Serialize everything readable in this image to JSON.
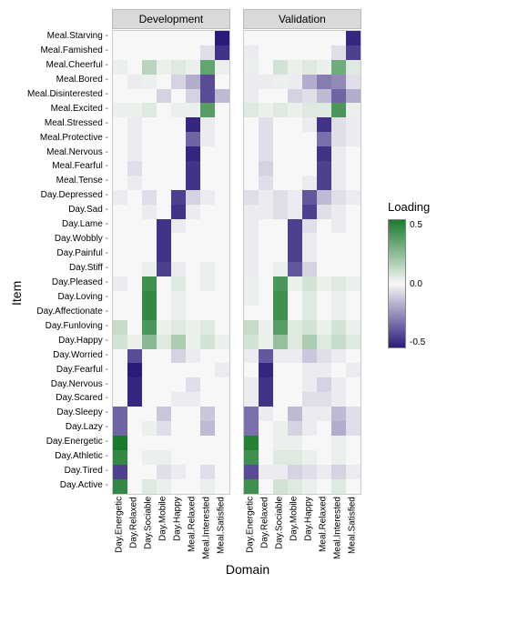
{
  "title_y": "Item",
  "title_x": "Domain",
  "legend_title": "Loading",
  "legend_ticks": [
    "0.5",
    "0.0",
    "-0.5"
  ],
  "color_scale": {
    "low": "#2c1a7a",
    "mid": "#f7f7f7",
    "high": "#1a7a2c",
    "domain": [
      -0.9,
      0,
      0.9
    ]
  },
  "y_items": [
    "Meal.Starving",
    "Meal.Famished",
    "Meal.Cheerful",
    "Meal.Bored",
    "Meal.Disinterested",
    "Meal.Excited",
    "Meal.Stressed",
    "Meal.Protective",
    "Meal.Nervous",
    "Meal.Fearful",
    "Meal.Tense",
    "Day.Depressed",
    "Day.Sad",
    "Day.Lame",
    "Day.Wobbly",
    "Day.Painful",
    "Day.Stiff",
    "Day.Pleased",
    "Day.Loving",
    "Day.Affectionate",
    "Day.Funloving",
    "Day.Happy",
    "Day.Worried",
    "Day.Fearful",
    "Day.Nervous",
    "Day.Scared",
    "Day.Sleepy",
    "Day.Lazy",
    "Day.Energetic",
    "Day.Athletic",
    "Day.Tired",
    "Day.Active"
  ],
  "x_domains": [
    "Day.Energetic",
    "Day.Relaxed",
    "Day.Sociable",
    "Day.Mobile",
    "Day.Happy",
    "Meal.Relaxed",
    "Meal.Interested",
    "Meal.Satisfied"
  ],
  "panels": [
    {
      "label": "Development",
      "data": [
        [
          0.0,
          0.0,
          0.0,
          0.0,
          0.0,
          0.0,
          0.0,
          -0.9
        ],
        [
          0.0,
          0.0,
          0.0,
          0.0,
          0.0,
          0.0,
          -0.1,
          -0.8
        ],
        [
          0.05,
          0.0,
          0.25,
          0.05,
          0.1,
          0.05,
          0.6,
          0.05
        ],
        [
          0.0,
          -0.05,
          0.05,
          0.0,
          -0.15,
          -0.3,
          -0.7,
          0.0
        ],
        [
          0.0,
          0.0,
          0.0,
          -0.15,
          0.0,
          -0.15,
          -0.7,
          -0.25
        ],
        [
          0.05,
          0.05,
          0.1,
          0.0,
          0.05,
          0.05,
          0.65,
          0.0
        ],
        [
          0.0,
          -0.05,
          0.0,
          0.0,
          0.0,
          -0.85,
          -0.05,
          0.0
        ],
        [
          0.0,
          -0.05,
          0.0,
          0.0,
          0.0,
          -0.6,
          -0.05,
          0.0
        ],
        [
          0.0,
          -0.05,
          0.0,
          0.0,
          0.0,
          -0.85,
          0.0,
          0.0
        ],
        [
          0.0,
          -0.1,
          0.0,
          0.0,
          0.0,
          -0.8,
          0.0,
          0.0
        ],
        [
          0.0,
          -0.05,
          0.0,
          0.0,
          0.0,
          -0.8,
          0.0,
          0.0
        ],
        [
          -0.05,
          0.0,
          -0.1,
          0.0,
          -0.75,
          -0.15,
          -0.05,
          0.0
        ],
        [
          0.0,
          0.0,
          -0.05,
          0.0,
          -0.8,
          -0.05,
          0.0,
          0.0
        ],
        [
          0.0,
          0.0,
          0.0,
          -0.8,
          -0.05,
          0.0,
          0.0,
          0.0
        ],
        [
          0.0,
          0.0,
          0.0,
          -0.8,
          0.0,
          0.0,
          0.0,
          0.0
        ],
        [
          0.0,
          0.0,
          0.0,
          -0.8,
          0.0,
          0.0,
          0.0,
          0.0
        ],
        [
          0.0,
          0.0,
          0.05,
          -0.75,
          -0.05,
          0.0,
          0.05,
          0.0
        ],
        [
          -0.05,
          0.0,
          0.75,
          0.0,
          0.1,
          0.0,
          0.05,
          0.0
        ],
        [
          0.0,
          0.0,
          0.8,
          0.0,
          0.05,
          0.0,
          0.0,
          0.0
        ],
        [
          0.0,
          0.0,
          0.8,
          0.0,
          0.05,
          0.0,
          0.0,
          0.0
        ],
        [
          0.2,
          0.0,
          0.7,
          0.05,
          0.1,
          0.05,
          0.1,
          0.0
        ],
        [
          0.15,
          0.05,
          0.45,
          0.1,
          0.3,
          0.05,
          0.15,
          0.05
        ],
        [
          0.0,
          -0.7,
          0.0,
          0.0,
          -0.15,
          -0.05,
          0.0,
          0.0
        ],
        [
          0.0,
          -0.9,
          0.0,
          0.0,
          0.0,
          0.0,
          0.0,
          -0.05
        ],
        [
          0.0,
          -0.85,
          0.0,
          0.0,
          0.0,
          -0.1,
          0.0,
          0.0
        ],
        [
          0.0,
          -0.85,
          0.0,
          0.0,
          -0.05,
          -0.05,
          0.0,
          0.0
        ],
        [
          -0.6,
          0.0,
          0.0,
          -0.2,
          0.0,
          0.0,
          -0.2,
          0.0
        ],
        [
          -0.6,
          0.0,
          0.05,
          -0.1,
          0.0,
          0.0,
          -0.25,
          0.0
        ],
        [
          0.9,
          0.0,
          0.0,
          0.0,
          0.0,
          0.0,
          0.0,
          0.0
        ],
        [
          0.8,
          0.0,
          0.05,
          0.05,
          0.0,
          0.0,
          0.0,
          0.0
        ],
        [
          -0.75,
          0.0,
          0.0,
          -0.1,
          -0.05,
          0.0,
          -0.1,
          0.0
        ],
        [
          0.8,
          0.0,
          0.1,
          0.05,
          0.0,
          0.0,
          0.05,
          0.0
        ]
      ]
    },
    {
      "label": "Validation",
      "data": [
        [
          0.0,
          0.0,
          0.0,
          0.0,
          0.0,
          0.0,
          0.0,
          -0.85
        ],
        [
          -0.05,
          0.0,
          0.0,
          0.0,
          0.0,
          0.0,
          -0.1,
          -0.75
        ],
        [
          0.05,
          0.0,
          0.15,
          0.05,
          0.1,
          0.05,
          0.55,
          0.1
        ],
        [
          -0.05,
          -0.05,
          0.05,
          -0.05,
          -0.3,
          -0.5,
          -0.45,
          -0.1
        ],
        [
          -0.05,
          0.0,
          0.0,
          -0.15,
          -0.1,
          -0.25,
          -0.6,
          -0.3
        ],
        [
          0.1,
          0.05,
          0.1,
          0.05,
          0.1,
          0.1,
          0.7,
          0.05
        ],
        [
          0.0,
          -0.1,
          0.0,
          0.0,
          -0.05,
          -0.8,
          -0.1,
          -0.05
        ],
        [
          0.0,
          -0.1,
          0.0,
          0.0,
          0.0,
          -0.55,
          -0.1,
          -0.05
        ],
        [
          0.0,
          -0.1,
          0.0,
          0.0,
          0.0,
          -0.8,
          -0.05,
          0.0
        ],
        [
          0.0,
          -0.15,
          0.0,
          0.0,
          0.0,
          -0.75,
          -0.05,
          0.0
        ],
        [
          0.0,
          -0.1,
          0.0,
          0.0,
          -0.05,
          -0.75,
          -0.05,
          0.0
        ],
        [
          -0.1,
          -0.05,
          -0.1,
          -0.05,
          -0.65,
          -0.25,
          -0.1,
          -0.05
        ],
        [
          -0.05,
          -0.05,
          -0.1,
          -0.05,
          -0.75,
          -0.1,
          -0.05,
          0.0
        ],
        [
          -0.05,
          0.0,
          0.0,
          -0.75,
          -0.1,
          0.0,
          -0.05,
          0.0
        ],
        [
          -0.05,
          0.0,
          0.0,
          -0.75,
          -0.05,
          0.0,
          0.0,
          0.0
        ],
        [
          -0.05,
          0.0,
          0.0,
          -0.75,
          -0.05,
          0.0,
          0.0,
          0.0
        ],
        [
          -0.05,
          0.0,
          0.05,
          -0.65,
          -0.15,
          0.0,
          0.0,
          0.0
        ],
        [
          0.05,
          0.0,
          0.7,
          0.05,
          0.15,
          0.05,
          0.1,
          0.05
        ],
        [
          0.05,
          0.0,
          0.75,
          0.0,
          0.1,
          0.0,
          0.05,
          0.0
        ],
        [
          0.0,
          0.0,
          0.75,
          0.0,
          0.1,
          0.0,
          0.05,
          0.0
        ],
        [
          0.2,
          0.05,
          0.65,
          0.1,
          0.15,
          0.05,
          0.15,
          0.05
        ],
        [
          0.15,
          0.05,
          0.4,
          0.1,
          0.3,
          0.1,
          0.2,
          0.1
        ],
        [
          -0.05,
          -0.65,
          -0.05,
          -0.05,
          -0.2,
          -0.1,
          -0.05,
          0.0
        ],
        [
          0.0,
          -0.85,
          0.0,
          0.0,
          -0.05,
          -0.05,
          0.0,
          -0.05
        ],
        [
          -0.05,
          -0.8,
          0.0,
          0.0,
          -0.05,
          -0.15,
          -0.05,
          0.0
        ],
        [
          -0.05,
          -0.8,
          0.0,
          0.0,
          -0.1,
          -0.1,
          -0.05,
          0.0
        ],
        [
          -0.55,
          -0.05,
          0.0,
          -0.25,
          -0.05,
          -0.05,
          -0.25,
          -0.1
        ],
        [
          -0.55,
          0.0,
          0.05,
          -0.15,
          -0.05,
          0.0,
          -0.3,
          -0.1
        ],
        [
          0.85,
          0.0,
          0.05,
          0.05,
          0.0,
          0.0,
          0.05,
          0.0
        ],
        [
          0.75,
          0.0,
          0.1,
          0.1,
          0.05,
          0.0,
          0.05,
          0.0
        ],
        [
          -0.7,
          -0.05,
          -0.05,
          -0.15,
          -0.1,
          -0.05,
          -0.15,
          -0.05
        ],
        [
          0.75,
          0.0,
          0.15,
          0.1,
          0.05,
          0.0,
          0.1,
          0.0
        ]
      ]
    }
  ],
  "cell_size": {
    "w": 16,
    "h": 15.9
  },
  "fonts": {
    "axis_label": 14,
    "tick": 10,
    "panel_header": 12,
    "legend_title": 13
  }
}
